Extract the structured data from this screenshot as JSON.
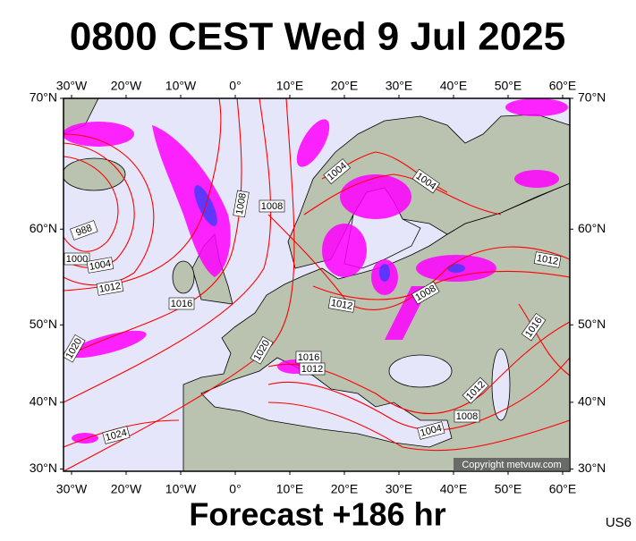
{
  "title": "0800 CEST Wed 9 Jul 2025",
  "footer": "Forecast +186 hr",
  "code": "US6",
  "copyright": "Copyright metvuw.com",
  "axes": {
    "lon_ticks": [
      {
        "value": -30,
        "label": "30°W"
      },
      {
        "value": -20,
        "label": "20°W"
      },
      {
        "value": -10,
        "label": "10°W"
      },
      {
        "value": 0,
        "label": "0°"
      },
      {
        "value": 10,
        "label": "10°E"
      },
      {
        "value": 20,
        "label": "20°E"
      },
      {
        "value": 30,
        "label": "30°E"
      },
      {
        "value": 40,
        "label": "40°E"
      },
      {
        "value": 50,
        "label": "50°E"
      },
      {
        "value": 60,
        "label": "60°E"
      }
    ],
    "lat_ticks": [
      {
        "value": 70,
        "label": "70°N"
      },
      {
        "value": 60,
        "label": "60°N"
      },
      {
        "value": 50,
        "label": "50°N"
      },
      {
        "value": 40,
        "label": "40°N"
      },
      {
        "value": 30,
        "label": "30°N"
      }
    ]
  },
  "isobar_labels": [
    1004,
    1004,
    1008,
    1008,
    988,
    1000,
    1004,
    1012,
    1016,
    1012,
    1008,
    1012,
    1016,
    1020,
    1016,
    1012,
    1020,
    1024,
    1012,
    1008,
    1004
  ]
}
